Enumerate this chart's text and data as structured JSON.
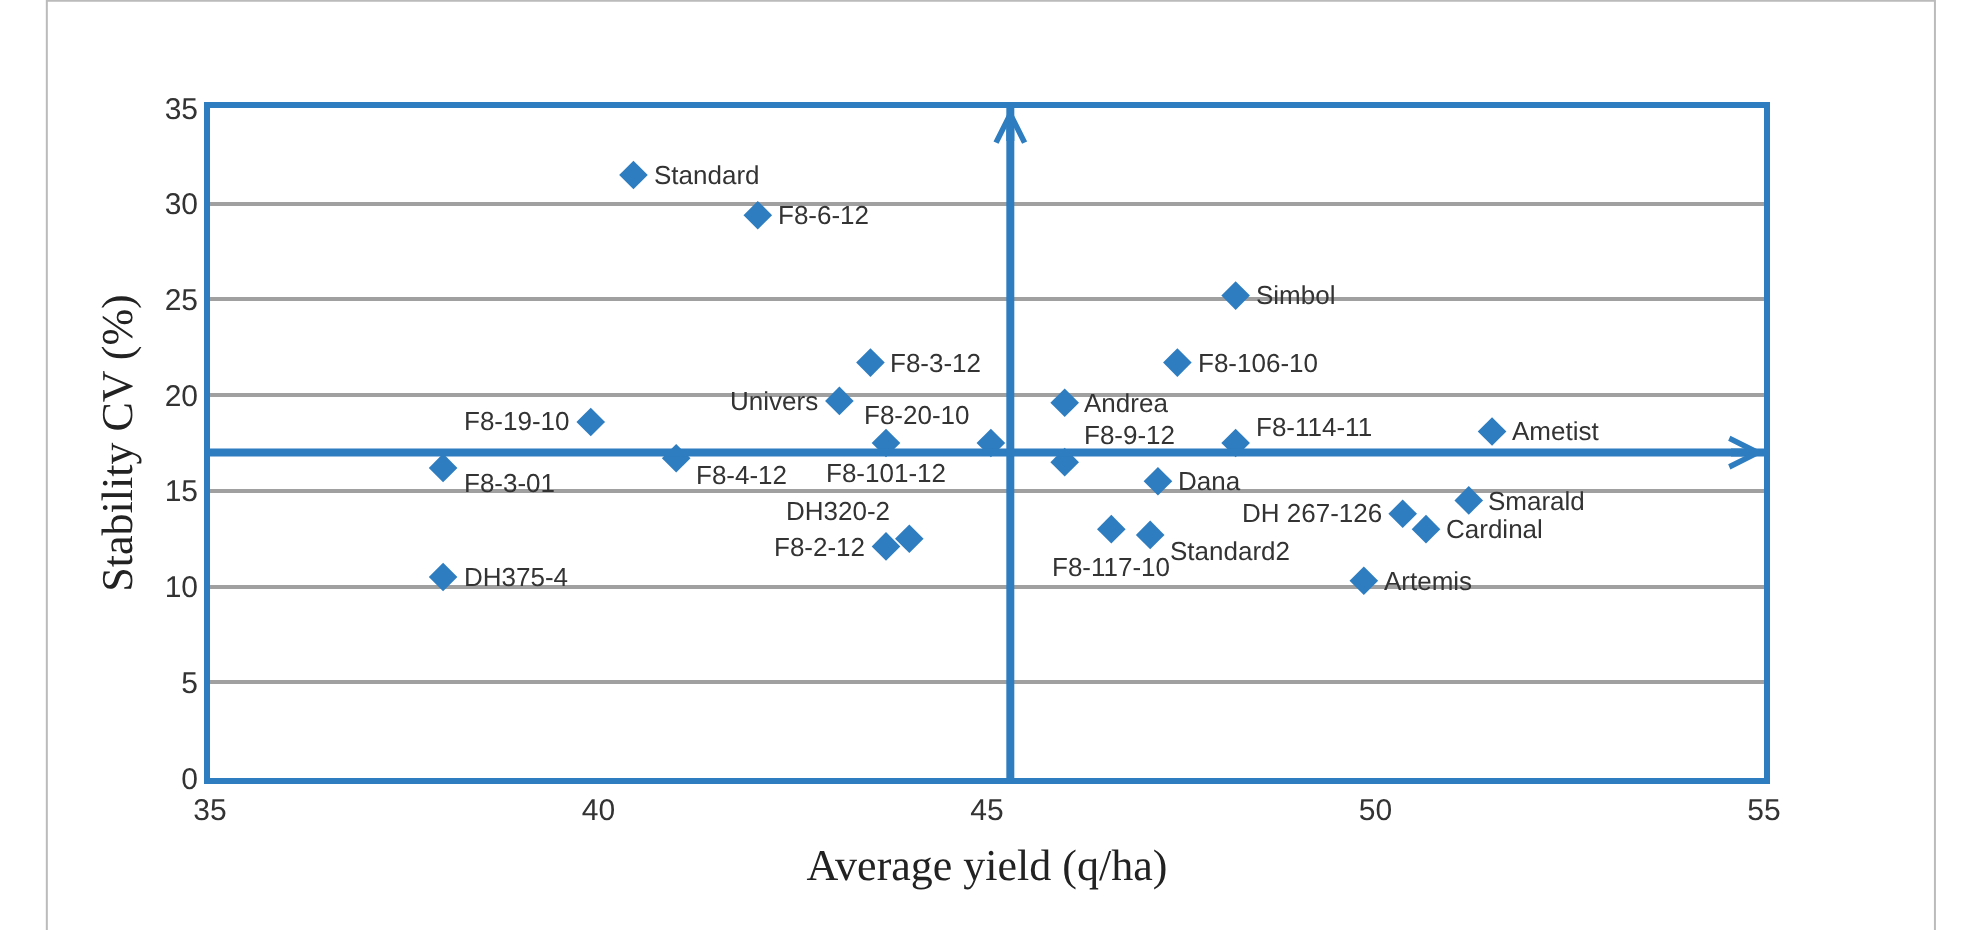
{
  "chart_data": {
    "type": "scatter",
    "xlabel": "Average yield (q/ha)",
    "ylabel": "Stability CV (%)",
    "xlim": [
      35,
      55
    ],
    "xticks": [
      35,
      40,
      45,
      50,
      55
    ],
    "ylim": [
      0,
      35
    ],
    "yticks": [
      0,
      5,
      10,
      15,
      20,
      25,
      30,
      35
    ],
    "grid": "y",
    "marker": "diamond",
    "series": [
      {
        "name": "Standard",
        "color": "#2e7dc0",
        "x": [
          40.45
        ],
        "values": [
          31.5
        ]
      },
      {
        "name": "F8-6-12",
        "color": "#2e7dc0",
        "x": [
          42.05
        ],
        "values": [
          29.4
        ]
      },
      {
        "name": "Simbol",
        "color": "#2e7dc0",
        "x": [
          48.2
        ],
        "values": [
          25.2
        ]
      },
      {
        "name": "F8-3-12",
        "color": "#2e7dc0",
        "x": [
          43.5
        ],
        "values": [
          21.7
        ]
      },
      {
        "name": "F8-106-10",
        "color": "#2e7dc0",
        "x": [
          47.45
        ],
        "values": [
          21.7
        ]
      },
      {
        "name": "Univers",
        "color": "#2e7dc0",
        "x": [
          43.1
        ],
        "values": [
          19.7
        ]
      },
      {
        "name": "Andrea",
        "color": "#2e7dc0",
        "x": [
          46.0
        ],
        "values": [
          19.6
        ]
      },
      {
        "name": "F8-19-10",
        "color": "#2e7dc0",
        "x": [
          39.9
        ],
        "values": [
          18.6
        ]
      },
      {
        "name": "Ametist",
        "color": "#2e7dc0",
        "x": [
          51.5
        ],
        "values": [
          18.1
        ]
      },
      {
        "name": "F8-114-11",
        "color": "#2e7dc0",
        "x": [
          48.2
        ],
        "values": [
          17.5
        ]
      },
      {
        "name": "F8-101-12",
        "color": "#2e7dc0",
        "x": [
          43.7
        ],
        "values": [
          17.5
        ]
      },
      {
        "name": "F8-20-10",
        "color": "#2e7dc0",
        "x": [
          45.05
        ],
        "values": [
          17.5
        ]
      },
      {
        "name": "F8-4-12",
        "color": "#2e7dc0",
        "x": [
          41.0
        ],
        "values": [
          16.7
        ]
      },
      {
        "name": "F8-9-12",
        "color": "#2e7dc0",
        "x": [
          46.0
        ],
        "values": [
          16.5
        ]
      },
      {
        "name": "F8-3-01",
        "color": "#2e7dc0",
        "x": [
          38.0
        ],
        "values": [
          16.2
        ]
      },
      {
        "name": "Dana",
        "color": "#2e7dc0",
        "x": [
          47.2
        ],
        "values": [
          15.5
        ]
      },
      {
        "name": "DH 267-126",
        "color": "#2e7dc0",
        "x": [
          50.35
        ],
        "values": [
          13.8
        ]
      },
      {
        "name": "Smarald",
        "color": "#2e7dc0",
        "x": [
          51.2
        ],
        "values": [
          14.5
        ]
      },
      {
        "name": "Cardinal",
        "color": "#2e7dc0",
        "x": [
          50.65
        ],
        "values": [
          13.0
        ]
      },
      {
        "name": "Artemis",
        "color": "#2e7dc0",
        "x": [
          49.85
        ],
        "values": [
          10.3
        ]
      },
      {
        "name": "Standard2",
        "color": "#2e7dc0",
        "x": [
          47.1
        ],
        "values": [
          12.7
        ]
      },
      {
        "name": "F8-117-10",
        "color": "#2e7dc0",
        "x": [
          46.6
        ],
        "values": [
          13.0
        ]
      },
      {
        "name": "DH320-2",
        "color": "#2e7dc0",
        "x": [
          44.0
        ],
        "values": [
          12.5
        ]
      },
      {
        "name": "F8-2-12",
        "color": "#2e7dc0",
        "x": [
          43.7
        ],
        "values": [
          12.1
        ]
      },
      {
        "name": "DH375-4",
        "color": "#2e7dc0",
        "x": [
          38.0
        ],
        "values": [
          10.5
        ]
      }
    ],
    "ref_lines": [
      {
        "axis": "x",
        "value": 45.3,
        "color": "#2e7dc0"
      },
      {
        "axis": "y",
        "value": 17,
        "color": "#2e7dc0"
      }
    ]
  }
}
